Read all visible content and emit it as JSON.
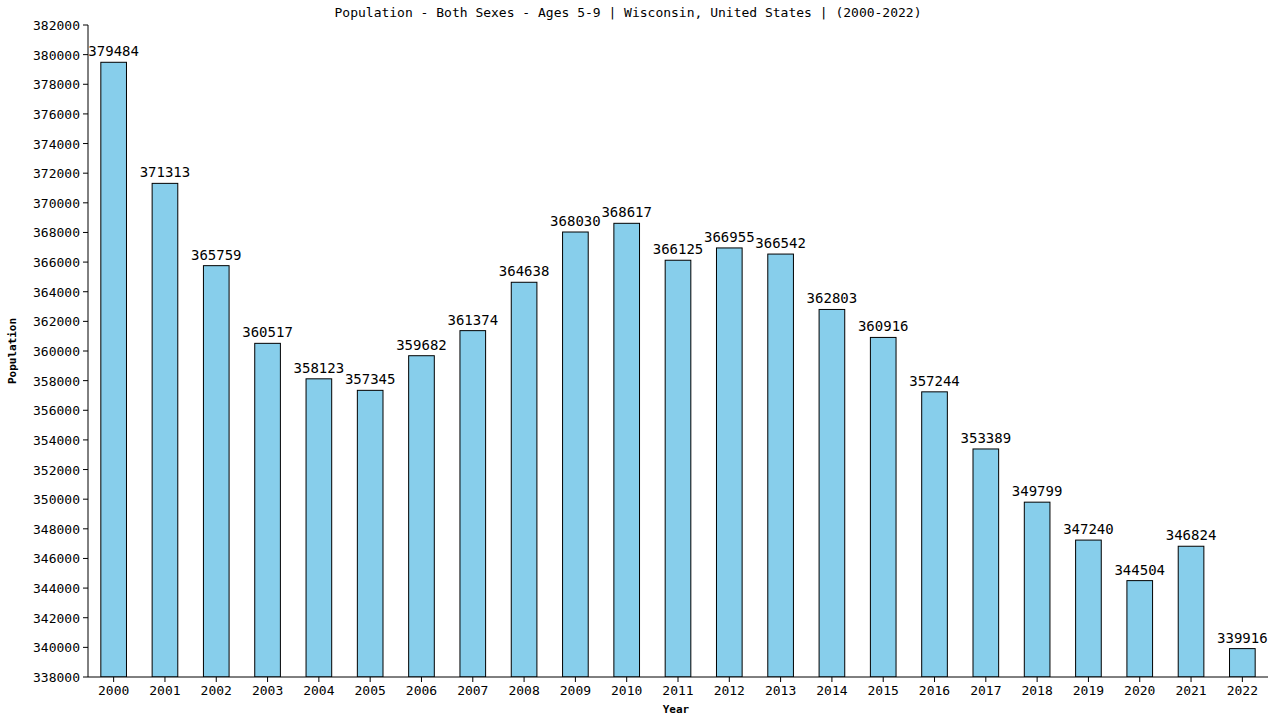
{
  "chart_data": {
    "type": "bar",
    "title": "Population - Both Sexes - Ages 5-9 | Wisconsin, United States |  (2000-2022)",
    "x_label": "Year",
    "y_label": "Population",
    "categories": [
      "2000",
      "2001",
      "2002",
      "2003",
      "2004",
      "2005",
      "2006",
      "2007",
      "2008",
      "2009",
      "2010",
      "2011",
      "2012",
      "2013",
      "2014",
      "2015",
      "2016",
      "2017",
      "2018",
      "2019",
      "2020",
      "2021",
      "2022"
    ],
    "values": [
      379484,
      371313,
      365759,
      360517,
      358123,
      357345,
      359682,
      361374,
      364638,
      368030,
      368617,
      366125,
      366955,
      366542,
      362803,
      360916,
      357244,
      353389,
      349799,
      347240,
      344504,
      346824,
      339916
    ],
    "color": "#87ceeb",
    "ylim": [
      338000,
      382000
    ],
    "yticks": [
      338000,
      340000,
      342000,
      344000,
      346000,
      348000,
      350000,
      352000,
      354000,
      356000,
      358000,
      360000,
      362000,
      364000,
      366000,
      368000,
      370000,
      372000,
      374000,
      376000,
      378000,
      380000,
      382000
    ],
    "grid": false,
    "data_labels": true
  }
}
